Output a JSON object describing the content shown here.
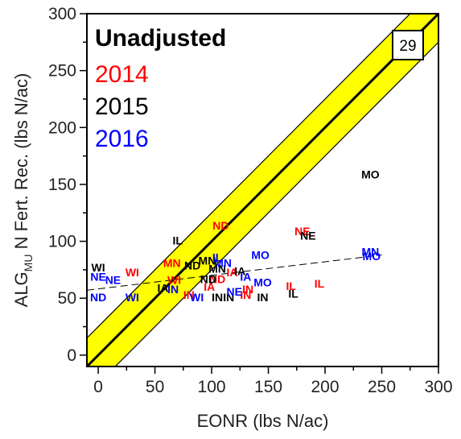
{
  "chart_data": {
    "type": "scatter",
    "title": "Unadjusted",
    "xlabel": "EONR (lbs N/ac)",
    "ylabel_main": "ALG",
    "ylabel_sub": "MU",
    "ylabel_rest": " N Fert. Rec. (lbs N/ac)",
    "xlim": [
      -10,
      300
    ],
    "ylim": [
      -10,
      300
    ],
    "x_ticks": [
      0,
      50,
      100,
      150,
      200,
      250,
      300
    ],
    "y_ticks": [
      0,
      50,
      100,
      150,
      200,
      250,
      300
    ],
    "count_label": "29",
    "band_color": "#ffff00",
    "band_halfwidth": 25,
    "regression": {
      "x0": -10,
      "y0": 57,
      "x1": 250,
      "y1": 88
    },
    "series": [
      {
        "name": "2014",
        "color": "#ff0000",
        "points": [
          {
            "label": "ND",
            "x": 108,
            "y": 113
          },
          {
            "label": "NE",
            "x": 180,
            "y": 108
          },
          {
            "label": "WI",
            "x": 30,
            "y": 72
          },
          {
            "label": "MN",
            "x": 65,
            "y": 80
          },
          {
            "label": "WI",
            "x": 67,
            "y": 65
          },
          {
            "label": "ND",
            "x": 105,
            "y": 66
          },
          {
            "label": "IA",
            "x": 98,
            "y": 59
          },
          {
            "label": "IN",
            "x": 80,
            "y": 52
          },
          {
            "label": "IA",
            "x": 118,
            "y": 72
          },
          {
            "label": "IN",
            "x": 132,
            "y": 57
          },
          {
            "label": "IN",
            "x": 130,
            "y": 52
          },
          {
            "label": "IL",
            "x": 170,
            "y": 60
          },
          {
            "label": "IL",
            "x": 195,
            "y": 62
          }
        ]
      },
      {
        "name": "2015",
        "color": "#000000",
        "points": [
          {
            "label": "MO",
            "x": 240,
            "y": 158
          },
          {
            "label": "IL",
            "x": 70,
            "y": 100
          },
          {
            "label": "NE",
            "x": 185,
            "y": 104
          },
          {
            "label": "WI",
            "x": 0,
            "y": 76
          },
          {
            "label": "ND",
            "x": 83,
            "y": 78
          },
          {
            "label": "MN",
            "x": 96,
            "y": 82
          },
          {
            "label": "MN",
            "x": 105,
            "y": 75
          },
          {
            "label": "IA",
            "x": 125,
            "y": 73
          },
          {
            "label": "ND",
            "x": 97,
            "y": 66
          },
          {
            "label": "IA",
            "x": 57,
            "y": 58
          },
          {
            "label": "IN",
            "x": 105,
            "y": 50
          },
          {
            "label": "IN",
            "x": 115,
            "y": 50
          },
          {
            "label": "IN",
            "x": 145,
            "y": 50
          },
          {
            "label": "IL",
            "x": 172,
            "y": 53
          }
        ]
      },
      {
        "name": "2016",
        "color": "#0000ff",
        "points": [
          {
            "label": "NE",
            "x": 0,
            "y": 68
          },
          {
            "label": "NE",
            "x": 13,
            "y": 65
          },
          {
            "label": "ND",
            "x": 0,
            "y": 50
          },
          {
            "label": "WI",
            "x": 30,
            "y": 50
          },
          {
            "label": "IN",
            "x": 66,
            "y": 57
          },
          {
            "label": "IL",
            "x": 105,
            "y": 85
          },
          {
            "label": "MN",
            "x": 110,
            "y": 80
          },
          {
            "label": "MO",
            "x": 143,
            "y": 87
          },
          {
            "label": "IA",
            "x": 130,
            "y": 68
          },
          {
            "label": "MO",
            "x": 145,
            "y": 63
          },
          {
            "label": "NE",
            "x": 120,
            "y": 55
          },
          {
            "label": "WI",
            "x": 87,
            "y": 50
          },
          {
            "label": "MN",
            "x": 240,
            "y": 90
          },
          {
            "label": "MO",
            "x": 241,
            "y": 86
          }
        ]
      }
    ]
  }
}
